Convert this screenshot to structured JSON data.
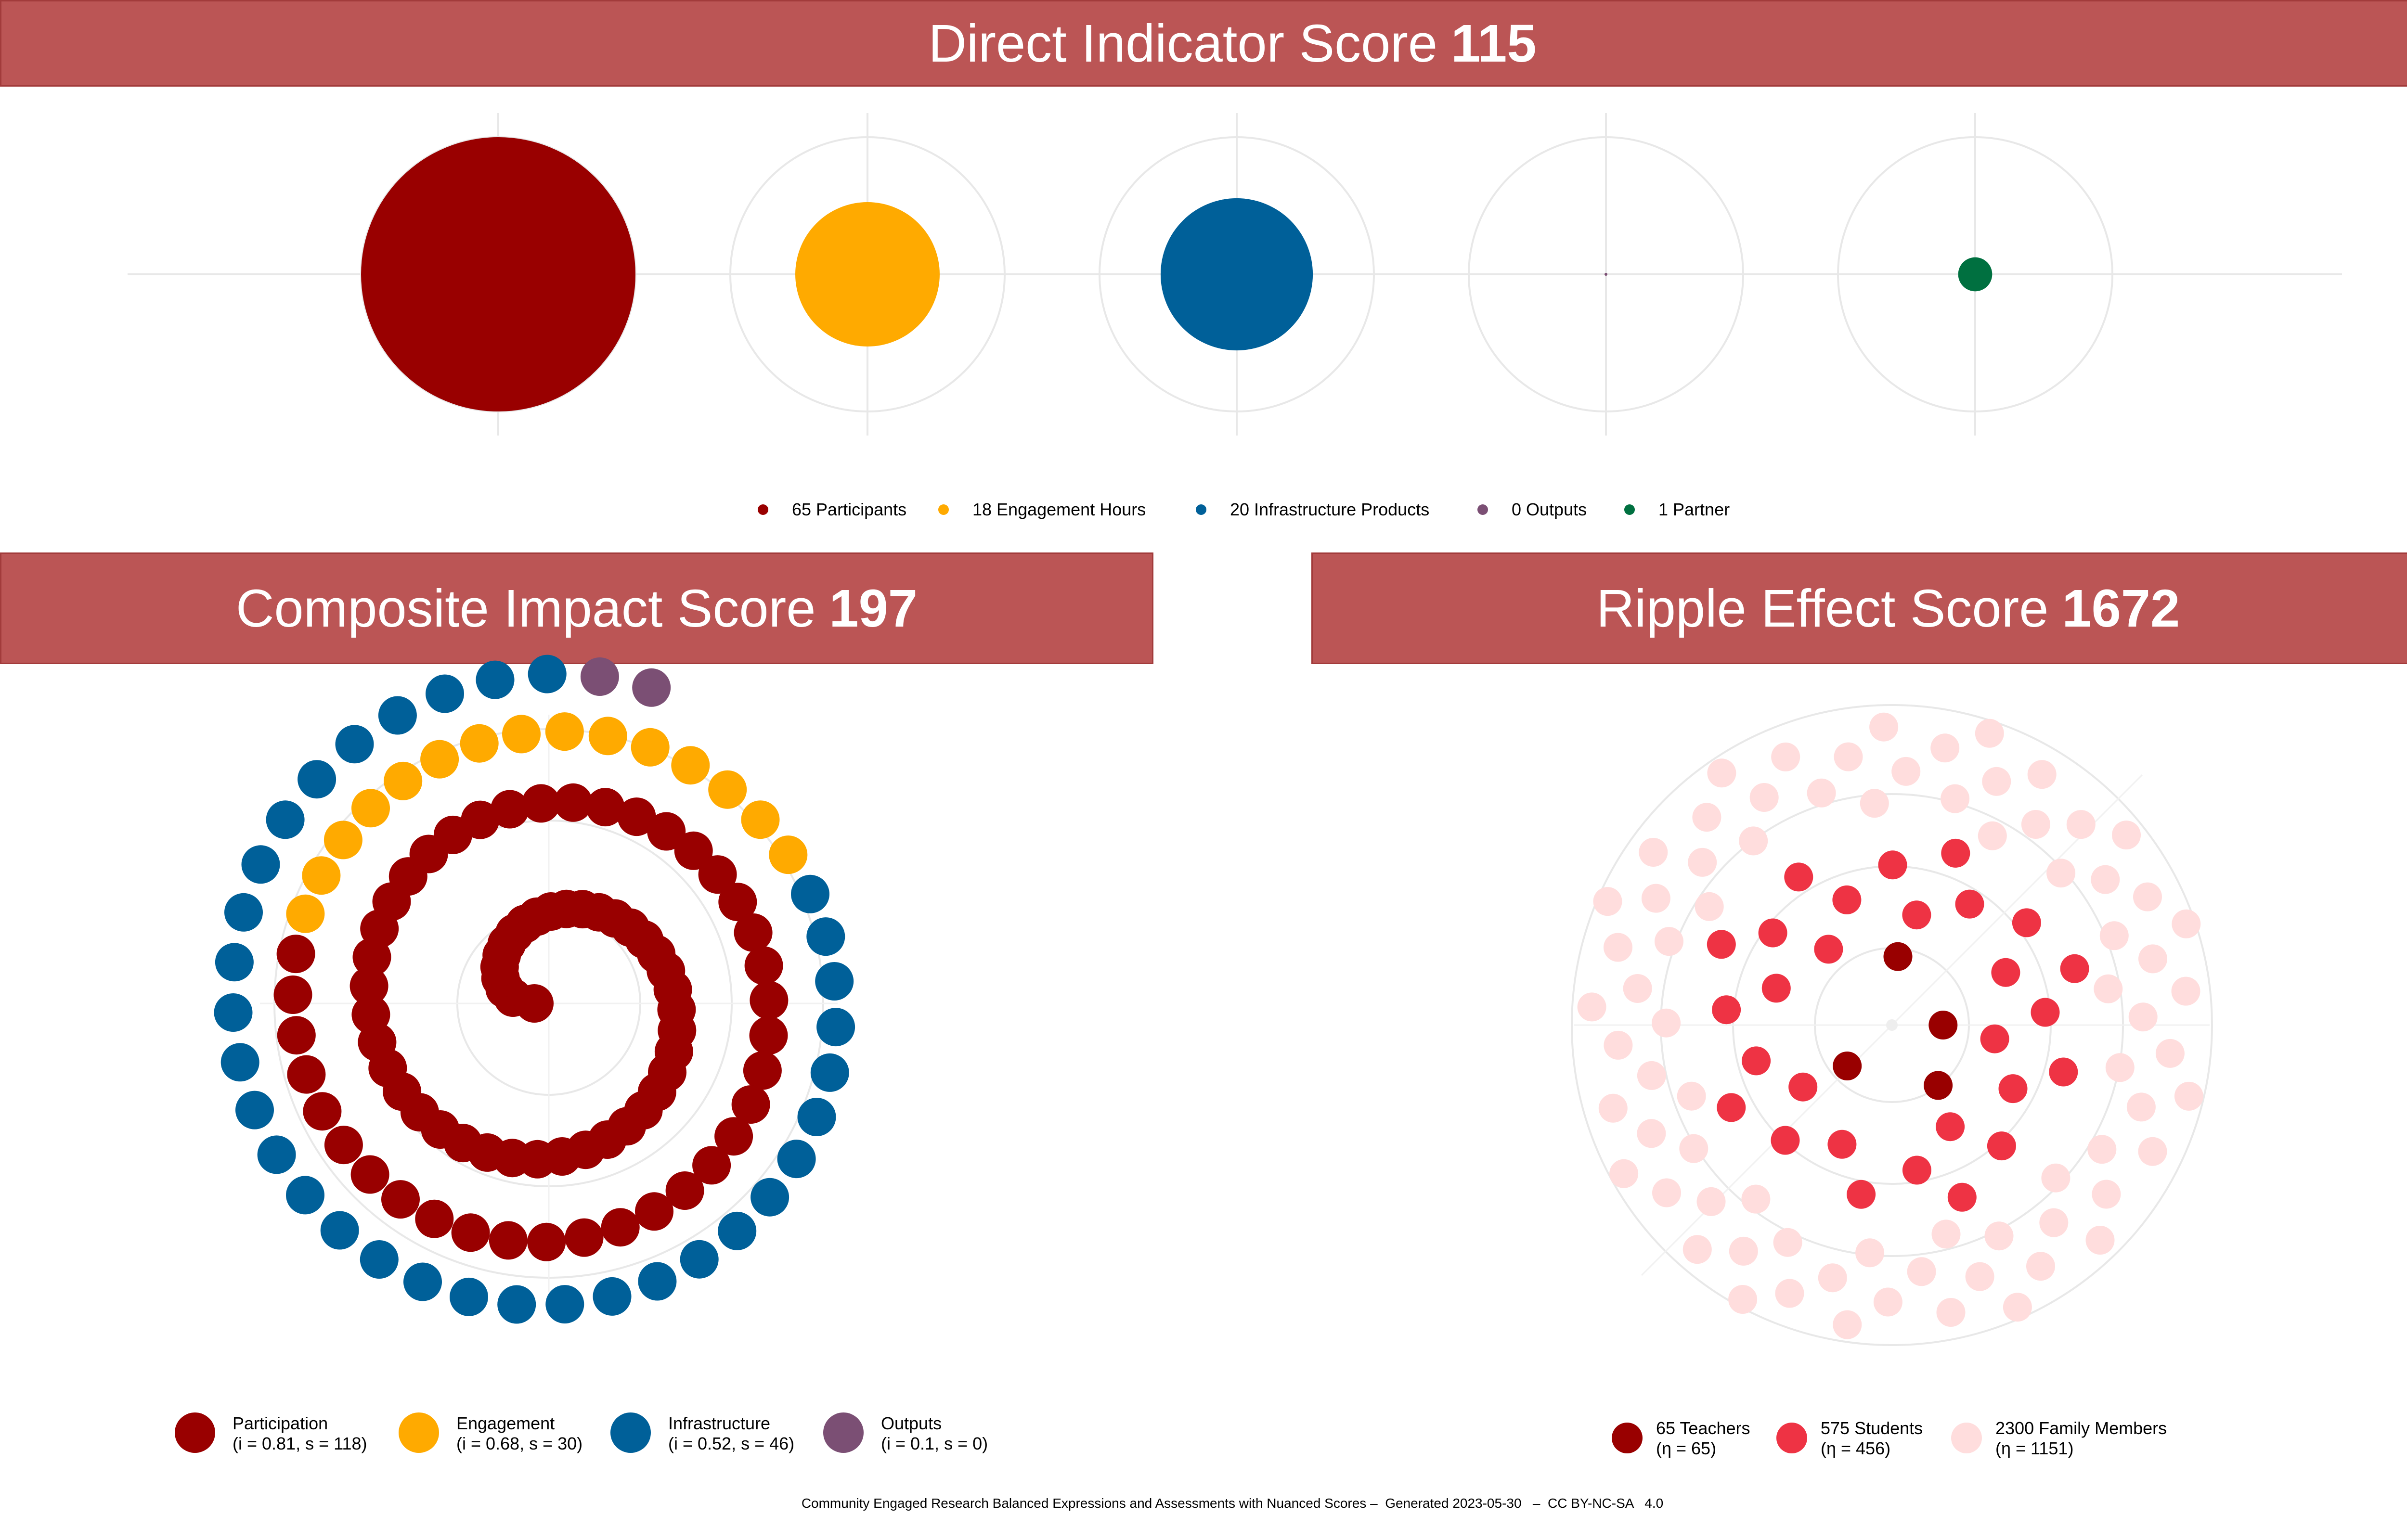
{
  "direct": {
    "title": "Direct Indicator Score",
    "score": "115",
    "legend": [
      "65 Participants",
      "18 Engagement Hours",
      "20 Infrastructure Products",
      "0 Outputs",
      "1 Partner"
    ]
  },
  "composite": {
    "title": "Composite Impact Score",
    "score": "197",
    "legend": [
      {
        "name": "Participation",
        "detail": "(i = 0.81, s = 118)"
      },
      {
        "name": "Engagement",
        "detail": "(i = 0.68, s = 30)"
      },
      {
        "name": "Infrastructure",
        "detail": "(i = 0.52, s = 46)"
      },
      {
        "name": "Outputs",
        "detail": "(i = 0.1, s = 0)"
      }
    ]
  },
  "ripple": {
    "title": "Ripple Effect Score",
    "score": "1672",
    "legend": [
      {
        "name": "65 Teachers",
        "detail": "(η = 65)"
      },
      {
        "name": "575 Students",
        "detail": "(η = 456)"
      },
      {
        "name": "2300 Family Members",
        "detail": "(η = 1151)"
      }
    ]
  },
  "footer": "Community Engaged Research Balanced Expressions and Assessments with Nuanced Scores –  Generated 2023-05-30   –  CC BY-NC-SA   4.0",
  "chart_data": [
    {
      "type": "scatter",
      "name": "direct-indicators",
      "categories": [
        "Participants",
        "Engagement Hours",
        "Infrastructure Products",
        "Outputs",
        "Partner"
      ],
      "values": [
        65,
        18,
        20,
        0,
        1
      ],
      "colors": [
        "#990000",
        "#ffaa00",
        "#006099",
        "#7b4f74",
        "#007040"
      ]
    },
    {
      "type": "scatter",
      "name": "composite-spiral",
      "series": [
        {
          "name": "Participation",
          "i": 0.81,
          "s": 118,
          "points": 81,
          "color": "#990000"
        },
        {
          "name": "Engagement",
          "i": 0.68,
          "s": 30,
          "points": 15,
          "color": "#ffaa00"
        },
        {
          "name": "Infrastructure",
          "i": 0.52,
          "s": 46,
          "points": 33,
          "color": "#006099"
        },
        {
          "name": "Outputs",
          "i": 0.1,
          "s": 0,
          "points": 2,
          "color": "#7b4f74"
        }
      ]
    },
    {
      "type": "scatter",
      "name": "ripple-effect",
      "series": [
        {
          "name": "65 Teachers",
          "eta": 65,
          "points": 4,
          "color": "#990000"
        },
        {
          "name": "575 Students",
          "eta": 456,
          "points": 28,
          "color": "#ee3344"
        },
        {
          "name": "2300 Family Members",
          "eta": 1151,
          "points": 74,
          "color": "#ffdddd"
        }
      ]
    }
  ]
}
